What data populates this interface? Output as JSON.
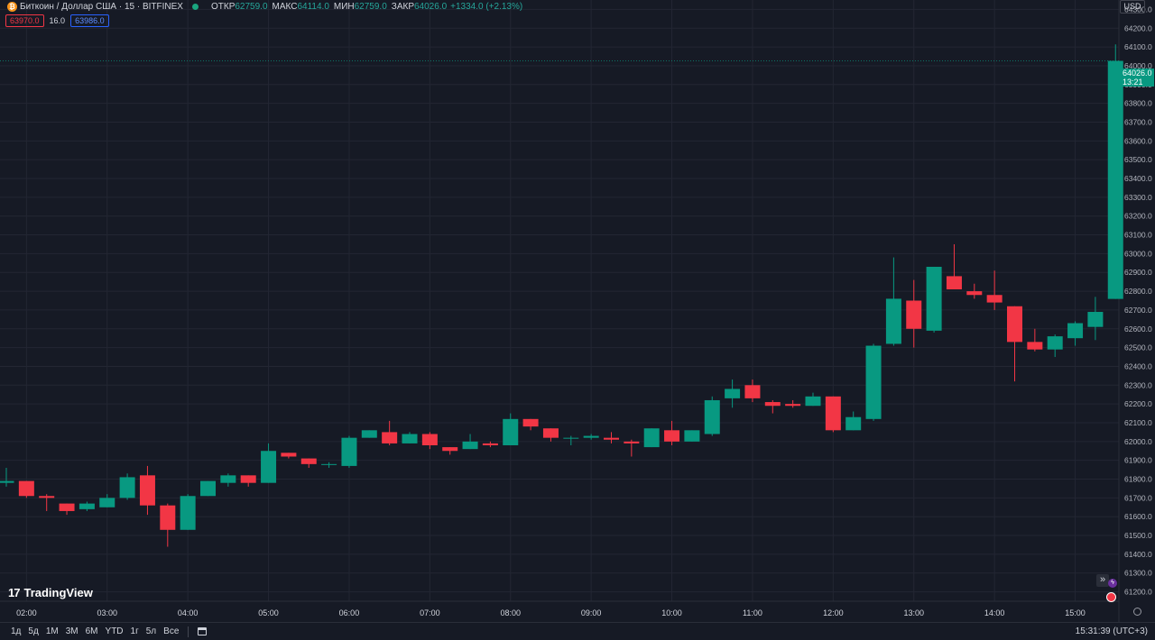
{
  "header": {
    "symbol": "Биткоин / Доллар США · 15 · BITFINEX",
    "open_label": "ОТКР",
    "open_value": "62759.0",
    "high_label": "МАКС",
    "high_value": "64114.0",
    "low_label": "МИН",
    "low_value": "62759.0",
    "close_label": "ЗАКР",
    "close_value": "64026.0",
    "change": "+1334.0 (+2.13%)"
  },
  "quote": {
    "bid": "63970.0",
    "spread": "16.0",
    "ask": "63986.0"
  },
  "currency": "USD",
  "last_price": {
    "price": "64026.0",
    "countdown": "13:21"
  },
  "branding": {
    "mark": "17",
    "name": "TradingView"
  },
  "bottom": {
    "ranges": [
      "1д",
      "5д",
      "1М",
      "3М",
      "6М",
      "YTD",
      "1г",
      "5л",
      "Все"
    ],
    "clock": "15:31:39 (UTC+3)"
  },
  "colors": {
    "up": "#089981",
    "down": "#f23645",
    "background": "#161a25",
    "grid": "#232633"
  },
  "chart_data": {
    "type": "candlestick",
    "title": "",
    "ylim": [
      61150,
      64350
    ],
    "y_ticks": [
      61200,
      61300,
      61400,
      61500,
      61600,
      61700,
      61800,
      61900,
      62000,
      62100,
      62200,
      62300,
      62400,
      62500,
      62600,
      62700,
      62800,
      62900,
      63000,
      63100,
      63200,
      63300,
      63400,
      63500,
      63600,
      63700,
      63800,
      63900,
      64000,
      64100,
      64200,
      64300
    ],
    "x_ticks": [
      "02:00",
      "03:00",
      "04:00",
      "05:00",
      "06:00",
      "07:00",
      "08:00",
      "09:00",
      "10:00",
      "11:00",
      "12:00",
      "13:00",
      "14:00",
      "15:00"
    ],
    "time_start": "01:45",
    "time_step_minutes": 15,
    "ohlc": [
      [
        61780,
        61860,
        61760,
        61790
      ],
      [
        61790,
        61790,
        61700,
        61710
      ],
      [
        61710,
        61720,
        61630,
        61700
      ],
      [
        61670,
        61670,
        61610,
        61630
      ],
      [
        61640,
        61680,
        61630,
        61670
      ],
      [
        61650,
        61720,
        61650,
        61700
      ],
      [
        61700,
        61830,
        61690,
        61810
      ],
      [
        61820,
        61870,
        61610,
        61660
      ],
      [
        61660,
        61670,
        61440,
        61530
      ],
      [
        61530,
        61720,
        61530,
        61710
      ],
      [
        61710,
        61790,
        61710,
        61790
      ],
      [
        61780,
        61830,
        61760,
        61820
      ],
      [
        61820,
        61820,
        61760,
        61780
      ],
      [
        61780,
        61990,
        61780,
        61950
      ],
      [
        61940,
        61940,
        61910,
        61920
      ],
      [
        61910,
        61910,
        61860,
        61880
      ],
      [
        61880,
        61890,
        61860,
        61880
      ],
      [
        61870,
        62030,
        61860,
        62020
      ],
      [
        62020,
        62060,
        62020,
        62060
      ],
      [
        62050,
        62110,
        61980,
        61990
      ],
      [
        61990,
        62050,
        61990,
        62040
      ],
      [
        62040,
        62050,
        61960,
        61980
      ],
      [
        61970,
        61970,
        61930,
        61950
      ],
      [
        61960,
        62040,
        61960,
        62000
      ],
      [
        61990,
        62000,
        61970,
        61980
      ],
      [
        61980,
        62150,
        61980,
        62120
      ],
      [
        62120,
        62120,
        62060,
        62080
      ],
      [
        62070,
        62070,
        62000,
        62020
      ],
      [
        62020,
        62030,
        61980,
        62020
      ],
      [
        62020,
        62040,
        62010,
        62030
      ],
      [
        62020,
        62050,
        61990,
        62010
      ],
      [
        62000,
        62010,
        61920,
        61990
      ],
      [
        61970,
        62070,
        61970,
        62070
      ],
      [
        62060,
        62110,
        61980,
        62000
      ],
      [
        62000,
        62060,
        62000,
        62060
      ],
      [
        62040,
        62240,
        62030,
        62220
      ],
      [
        62230,
        62330,
        62180,
        62280
      ],
      [
        62300,
        62330,
        62210,
        62230
      ],
      [
        62210,
        62220,
        62150,
        62190
      ],
      [
        62200,
        62220,
        62180,
        62190
      ],
      [
        62190,
        62260,
        62190,
        62240
      ],
      [
        62240,
        62240,
        62050,
        62060
      ],
      [
        62060,
        62160,
        62060,
        62130
      ],
      [
        62120,
        62520,
        62110,
        62510
      ],
      [
        62520,
        62980,
        62510,
        62760
      ],
      [
        62750,
        62860,
        62500,
        62600
      ],
      [
        62590,
        62930,
        62580,
        62930
      ],
      [
        62880,
        63050,
        62820,
        62810
      ],
      [
        62800,
        62840,
        62760,
        62780
      ],
      [
        62780,
        62910,
        62700,
        62740
      ],
      [
        62720,
        62720,
        62320,
        62530
      ],
      [
        62530,
        62600,
        62480,
        62490
      ],
      [
        62490,
        62570,
        62450,
        62560
      ],
      [
        62550,
        62640,
        62510,
        62630
      ],
      [
        62610,
        62770,
        62540,
        62690
      ],
      [
        62759,
        64114,
        62759,
        64026
      ]
    ]
  }
}
